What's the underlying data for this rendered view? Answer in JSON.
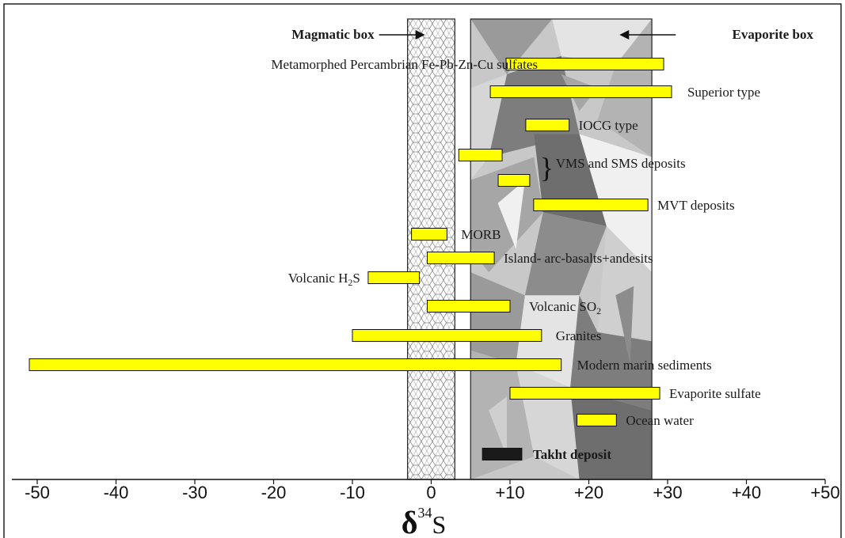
{
  "chart_data": {
    "type": "range-bar",
    "xlabel": {
      "main": "δ",
      "sup": "34",
      "tail": "S"
    },
    "xlim": [
      -52,
      51
    ],
    "xticks": [
      -50,
      -40,
      -30,
      -20,
      -10,
      0,
      10,
      20,
      30,
      40,
      50
    ],
    "xtick_labels": [
      "-50",
      "-40",
      "-30",
      "-20",
      "-10",
      "0",
      "+10",
      "+20",
      "+30",
      "+40",
      "+50"
    ],
    "grid": false,
    "bar_color": "#ffff00",
    "takht_color": "#1a1a1a",
    "zones": [
      {
        "name": "Magmatic box",
        "range": [
          -3,
          3
        ],
        "pattern": "hexagonal-mesh"
      },
      {
        "name": "Evaporite box",
        "range": [
          5,
          28
        ],
        "pattern": "grey-mosaic"
      }
    ],
    "series": [
      {
        "label": "Metamorphed Percambrian Fe-Pb-Zn-Cu sulfates",
        "range": [
          9.5,
          29.5
        ]
      },
      {
        "label": "Superior type",
        "range": [
          7.5,
          30.5
        ]
      },
      {
        "label": "IOCG type",
        "range": [
          12,
          17.5
        ]
      },
      {
        "label": "VMS and SMS deposits",
        "group": true,
        "ranges": [
          [
            3.5,
            9
          ],
          [
            8.5,
            12.5
          ]
        ]
      },
      {
        "label": "MVT deposits",
        "range": [
          13,
          27.5
        ]
      },
      {
        "label": "MORB",
        "range": [
          -2.5,
          2
        ]
      },
      {
        "label": "Island- arc-basalts+andesits",
        "range": [
          -0.5,
          8
        ]
      },
      {
        "label": "Volcanic H",
        "sub": "2",
        "tail": "S",
        "range": [
          -8,
          -1.5
        ]
      },
      {
        "label": "Volcanic SO",
        "sub": "2",
        "tail": "",
        "range": [
          -0.5,
          10
        ]
      },
      {
        "label": "Granites",
        "range": [
          -10,
          14
        ]
      },
      {
        "label": "Modern marin sediments",
        "range": [
          -51,
          16.5
        ]
      },
      {
        "label": "Evaporite sulfate",
        "range": [
          10,
          29
        ]
      },
      {
        "label": "Ocean water",
        "range": [
          18.5,
          23.5
        ]
      },
      {
        "label": "Takht deposit",
        "range": [
          6.5,
          11.5
        ]
      }
    ]
  }
}
